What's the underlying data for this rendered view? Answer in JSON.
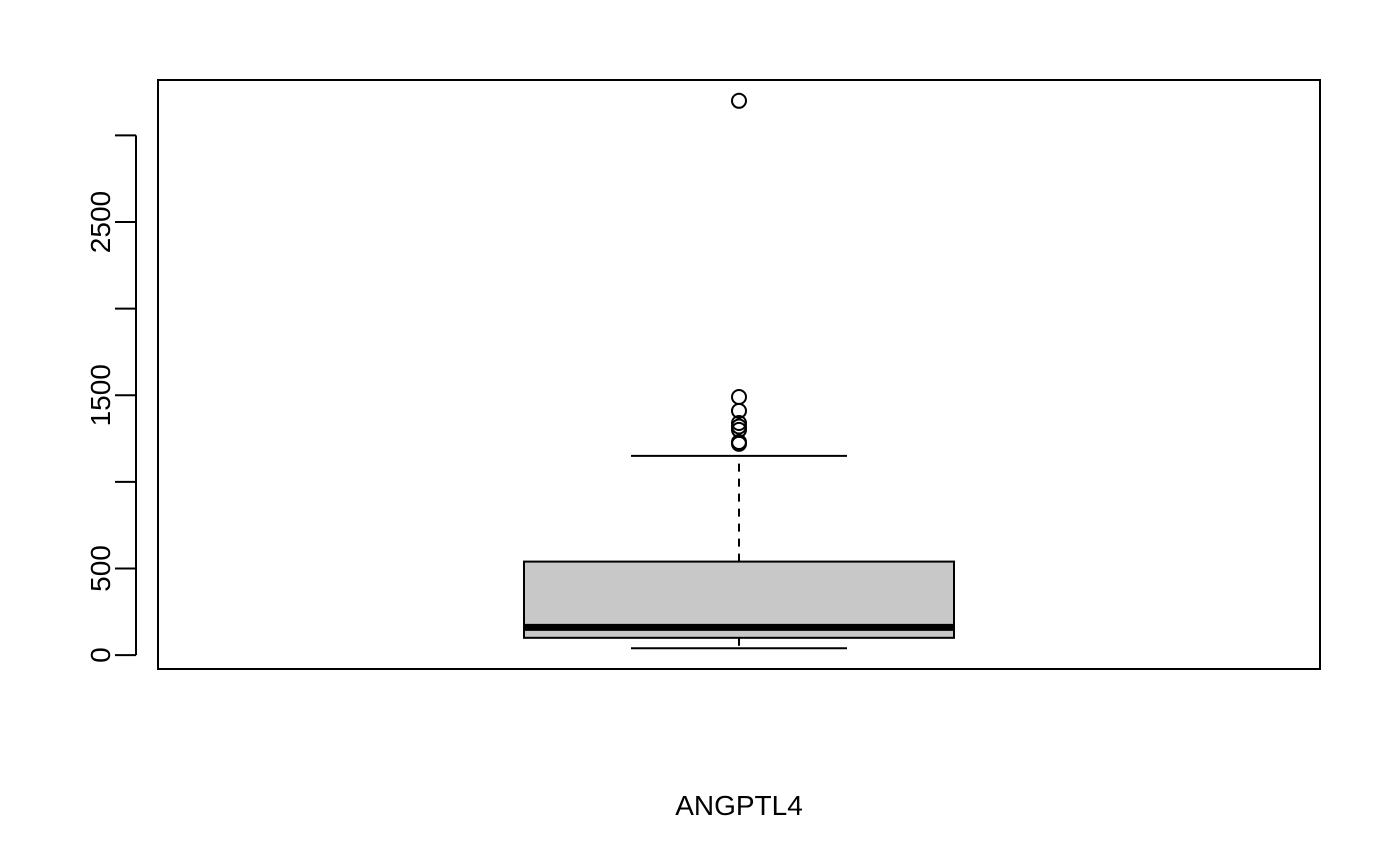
{
  "chart_data": {
    "type": "boxplot",
    "title": "",
    "xlabel": "ANGPTL4",
    "ylabel": "",
    "ylim": [
      -80,
      3320
    ],
    "y_ticks": [
      0,
      500,
      1000,
      1500,
      2000,
      2500,
      3000
    ],
    "y_tick_labels": [
      "0",
      "500",
      "",
      "1500",
      "",
      "2500",
      ""
    ],
    "grid": false,
    "box": {
      "name": "ANGPTL4",
      "whisker_low": 40,
      "q1": 100,
      "median": 160,
      "q3": 540,
      "whisker_high": 1150,
      "outliers": [
        1220,
        1230,
        1300,
        1320,
        1340,
        1410,
        1490,
        3200
      ]
    },
    "colors": {
      "box_fill": "#c8c8c8",
      "stroke": "#000000",
      "background": "#ffffff"
    }
  }
}
